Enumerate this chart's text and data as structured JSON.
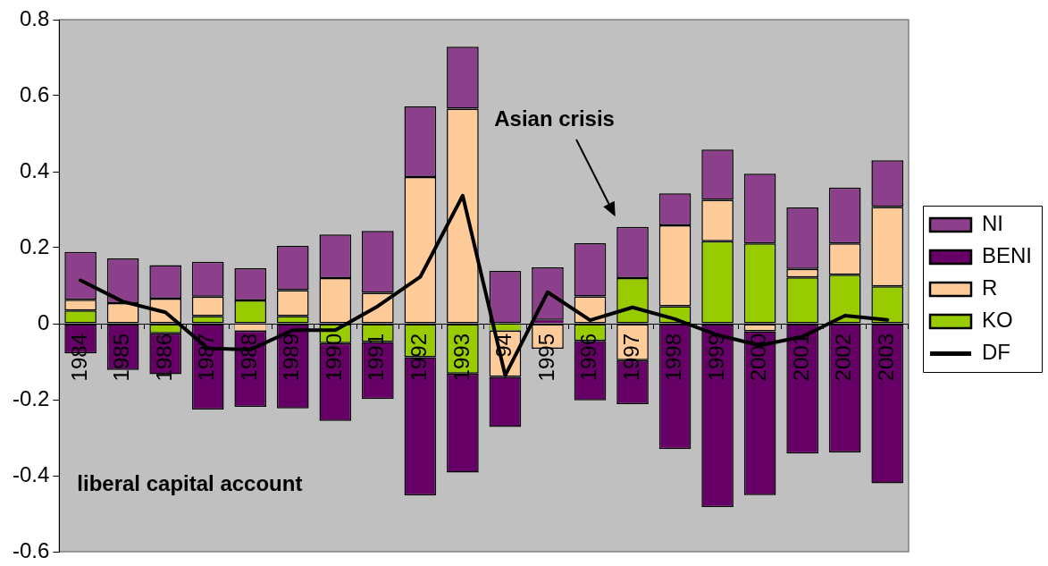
{
  "chart_data": {
    "type": "bar",
    "stacked": true,
    "categories": [
      "1984",
      "1985",
      "1986",
      "1987",
      "1988",
      "1989",
      "1990",
      "1991",
      "1992",
      "1993",
      "94",
      "1995",
      "1996",
      "1997",
      "1998",
      "1999",
      "2000",
      "2001",
      "2002",
      "2003"
    ],
    "series": [
      {
        "name": "KO",
        "color": "#99cc00",
        "values": [
          0.035,
          null,
          -0.025,
          0.02,
          0.061,
          0.02,
          -0.051,
          -0.048,
          -0.088,
          -0.131,
          -0.018,
          null,
          -0.045,
          0.12,
          0.046,
          0.217,
          0.211,
          0.122,
          0.129,
          0.098
        ]
      },
      {
        "name": "R",
        "color": "#ffcc99",
        "values": [
          0.028,
          0.054,
          0.066,
          0.051,
          -0.018,
          0.068,
          0.12,
          0.081,
          0.386,
          0.566,
          -0.122,
          -0.066,
          0.072,
          -0.096,
          0.213,
          0.109,
          -0.02,
          0.022,
          0.082,
          0.209
        ]
      },
      {
        "name": "BENI",
        "color": "#660066",
        "values": [
          -0.078,
          -0.122,
          -0.108,
          -0.226,
          -0.201,
          -0.223,
          -0.205,
          -0.15,
          -0.364,
          -0.261,
          -0.132,
          0.01,
          -0.157,
          -0.116,
          -0.33,
          -0.483,
          -0.431,
          -0.342,
          -0.339,
          -0.42
        ]
      },
      {
        "name": "NI",
        "color": "#8c408c",
        "values": [
          0.126,
          0.118,
          0.088,
          0.092,
          0.085,
          0.117,
          0.115,
          0.163,
          0.186,
          0.163,
          0.139,
          0.138,
          0.14,
          0.135,
          0.084,
          0.132,
          0.184,
          0.162,
          0.147,
          0.123
        ]
      },
      {
        "name": "DF",
        "type": "line",
        "color": "#000000",
        "values": [
          0.114,
          0.058,
          0.03,
          -0.065,
          -0.068,
          -0.017,
          -0.017,
          0.046,
          0.123,
          0.337,
          -0.136,
          0.083,
          0.009,
          0.043,
          0.012,
          -0.03,
          -0.057,
          -0.034,
          0.021,
          0.01
        ]
      }
    ],
    "ylim": [
      -0.6,
      0.8
    ],
    "yticks": [
      -0.6,
      -0.4,
      -0.2,
      0,
      0.2,
      0.4,
      0.6,
      0.8
    ],
    "legend": "right",
    "marker": "none",
    "annotations": [
      "Asian crisis",
      "liberal capital account"
    ]
  }
}
